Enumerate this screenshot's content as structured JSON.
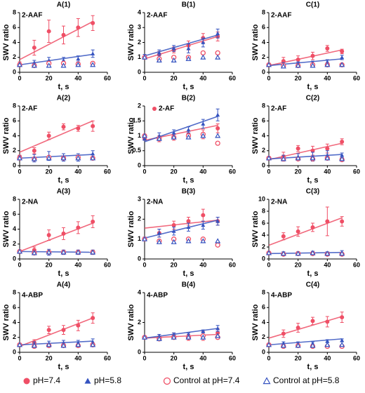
{
  "legend": [
    {
      "name": "pH=7.4",
      "color": "#ef4f66",
      "marker": "circle"
    },
    {
      "name": "pH=5.8",
      "color": "#3553c0",
      "marker": "triangle"
    },
    {
      "name": "Control at pH=7.4",
      "color": "#ef4f66",
      "marker": "open-circle"
    },
    {
      "name": "Control at pH=5.8",
      "color": "#3553c0",
      "marker": "open-triangle"
    }
  ],
  "chart_data": [
    {
      "type": "scatter",
      "title": "A(1)",
      "label": "2-AAF",
      "y_label": "SWV ratio",
      "x_label": "t, s",
      "x": [
        0,
        10,
        20,
        30,
        40,
        50
      ],
      "xlim": [
        0,
        60
      ],
      "xticks": [
        0,
        20,
        40,
        60
      ],
      "ylim": [
        0,
        8
      ],
      "yticks": [
        0,
        2,
        4,
        6,
        8
      ],
      "fit_x": [
        0,
        50
      ],
      "series": [
        {
          "values": [
            1.1,
            3.3,
            5.5,
            5.0,
            6.0,
            6.6
          ],
          "errors": [
            0.3,
            1.0,
            1.5,
            1.2,
            1.2,
            1.0
          ],
          "fit": [
            1.7,
            6.8
          ]
        },
        {
          "values": [
            1.0,
            1.3,
            1.6,
            1.6,
            1.8,
            2.5
          ],
          "errors": [
            0.2,
            0.3,
            0.4,
            0.4,
            0.4,
            0.5
          ],
          "fit": [
            1.0,
            2.4
          ]
        },
        {
          "values": [
            1.0,
            0.9,
            1.2,
            1.2,
            1.1,
            1.2
          ]
        },
        {
          "values": [
            1.0,
            0.9,
            0.9,
            0.9,
            1.0,
            1.0
          ]
        }
      ]
    },
    {
      "type": "scatter",
      "title": "B(1)",
      "label": "2-AAF",
      "y_label": "SWV ratio",
      "x_label": "t, s",
      "x": [
        0,
        10,
        20,
        30,
        40,
        50
      ],
      "xlim": [
        0,
        60
      ],
      "xticks": [
        0,
        20,
        40,
        60
      ],
      "ylim": [
        0,
        4
      ],
      "yticks": [
        0,
        1,
        2,
        3,
        4
      ],
      "fit_x": [
        0,
        50
      ],
      "series": [
        {
          "values": [
            1.0,
            1.2,
            1.5,
            1.8,
            2.3,
            2.4
          ],
          "errors": [
            0.1,
            0.2,
            0.2,
            0.3,
            0.3,
            0.3
          ],
          "fit": [
            0.9,
            2.4
          ]
        },
        {
          "values": [
            1.1,
            1.3,
            1.6,
            1.6,
            2.0,
            2.6
          ],
          "errors": [
            0.1,
            0.2,
            0.2,
            0.3,
            0.3,
            0.3
          ],
          "fit": [
            1.1,
            2.5
          ]
        },
        {
          "values": [
            1.0,
            0.9,
            1.0,
            1.0,
            1.3,
            1.3
          ]
        },
        {
          "values": [
            1.0,
            0.8,
            0.8,
            0.9,
            1.0,
            1.0
          ]
        }
      ]
    },
    {
      "type": "scatter",
      "title": "C(1)",
      "label": "2-AAF",
      "y_label": "SWV ratio",
      "x_label": "t, s",
      "x": [
        0,
        10,
        20,
        30,
        40,
        50
      ],
      "xlim": [
        0,
        60
      ],
      "xticks": [
        0,
        20,
        40,
        60
      ],
      "ylim": [
        0,
        8
      ],
      "yticks": [
        0,
        2,
        4,
        6,
        8
      ],
      "fit_x": [
        0,
        50
      ],
      "series": [
        {
          "values": [
            1.0,
            1.5,
            1.7,
            2.2,
            3.2,
            2.8
          ],
          "errors": [
            0.2,
            0.5,
            0.5,
            0.5,
            0.4,
            0.3
          ],
          "fit": [
            0.9,
            3.0
          ]
        },
        {
          "values": [
            1.0,
            1.1,
            1.2,
            1.3,
            1.4,
            2.0
          ],
          "errors": [
            0.1,
            0.2,
            0.2,
            0.2,
            0.3,
            0.3
          ],
          "fit": [
            0.9,
            1.8
          ]
        },
        {
          "values": [
            1.0,
            0.9,
            0.9,
            1.0,
            1.0,
            1.0
          ]
        },
        {
          "values": [
            1.0,
            0.8,
            0.9,
            0.9,
            1.0,
            1.0
          ]
        }
      ]
    },
    {
      "type": "scatter",
      "title": "A(2)",
      "label": "2-AF",
      "y_label": "SWV ratio",
      "x_label": "t, s",
      "x": [
        0,
        10,
        20,
        30,
        40,
        50
      ],
      "xlim": [
        0,
        60
      ],
      "xticks": [
        0,
        20,
        40,
        60
      ],
      "ylim": [
        0,
        8
      ],
      "yticks": [
        0,
        2,
        4,
        6,
        8
      ],
      "fit_x": [
        0,
        50
      ],
      "series": [
        {
          "values": [
            1.2,
            2.0,
            4.0,
            5.2,
            5.0,
            5.3
          ],
          "errors": [
            0.2,
            0.4,
            0.5,
            0.4,
            0.4,
            0.7
          ],
          "fit": [
            1.8,
            6.0
          ]
        },
        {
          "values": [
            1.1,
            1.0,
            1.3,
            1.1,
            1.1,
            1.6
          ],
          "errors": [
            0.2,
            0.5,
            0.6,
            0.5,
            0.5,
            0.4
          ],
          "fit": [
            1.0,
            1.5
          ]
        },
        {
          "values": [
            1.0,
            0.9,
            1.1,
            1.0,
            1.1,
            1.0
          ]
        },
        {
          "values": [
            1.0,
            0.9,
            1.0,
            1.0,
            1.0,
            1.0
          ]
        }
      ]
    },
    {
      "type": "scatter",
      "title": "B(2)",
      "label": "2-AF",
      "label_marker": "circle",
      "y_label": "SWV ratio",
      "x_label": "t, s",
      "x": [
        0,
        10,
        20,
        30,
        40,
        50
      ],
      "xlim": [
        0,
        60
      ],
      "xticks": [
        0,
        20,
        40,
        60
      ],
      "ylim": [
        0,
        2
      ],
      "yticks": [
        0,
        0.5,
        1,
        1.5,
        2
      ],
      "fit_x": [
        0,
        50
      ],
      "series": [
        {
          "values": [
            0.9,
            0.9,
            0.95,
            1.05,
            1.05,
            1.25
          ],
          "errors": [
            0.05,
            0.1,
            0.1,
            0.1,
            0.15,
            0.15
          ],
          "fit": [
            0.85,
            1.35
          ]
        },
        {
          "values": [
            0.9,
            1.0,
            1.1,
            1.2,
            1.4,
            1.7
          ],
          "errors": [
            0.05,
            0.1,
            0.1,
            0.1,
            0.15,
            0.2
          ],
          "fit": [
            0.8,
            1.65
          ]
        },
        {
          "values": [
            1.0,
            0.9,
            0.95,
            1.0,
            1.05,
            0.75
          ]
        },
        {
          "values": [
            1.0,
            0.9,
            0.95,
            0.95,
            1.0,
            1.0
          ]
        }
      ]
    },
    {
      "type": "scatter",
      "title": "C(2)",
      "label": "2-AF",
      "y_label": "SWV ratio",
      "x_label": "t, s",
      "x": [
        0,
        10,
        20,
        30,
        40,
        50
      ],
      "xlim": [
        0,
        60
      ],
      "xticks": [
        0,
        20,
        40,
        60
      ],
      "ylim": [
        0,
        8
      ],
      "yticks": [
        0,
        2,
        4,
        6,
        8
      ],
      "fit_x": [
        0,
        50
      ],
      "series": [
        {
          "values": [
            1.0,
            1.2,
            2.3,
            2.0,
            2.3,
            3.2
          ],
          "errors": [
            0.2,
            0.6,
            0.4,
            0.6,
            0.6,
            0.4
          ],
          "fit": [
            0.8,
            3.0
          ]
        },
        {
          "values": [
            1.0,
            1.1,
            1.2,
            1.2,
            1.4,
            1.4
          ],
          "errors": [
            0.1,
            0.3,
            0.4,
            0.6,
            0.6,
            0.3
          ],
          "fit": [
            0.9,
            1.5
          ]
        },
        {
          "values": [
            1.0,
            0.9,
            0.9,
            0.9,
            1.0,
            0.8
          ]
        },
        {
          "values": [
            1.0,
            0.9,
            1.0,
            1.0,
            1.0,
            0.9
          ]
        }
      ]
    },
    {
      "type": "scatter",
      "title": "A(3)",
      "label": "2-NA",
      "y_label": "SWV ratio",
      "x_label": "t, s",
      "x": [
        0,
        10,
        20,
        30,
        40,
        50
      ],
      "xlim": [
        0,
        60
      ],
      "xticks": [
        0,
        20,
        40,
        60
      ],
      "ylim": [
        0,
        8
      ],
      "yticks": [
        0,
        2,
        4,
        6,
        8
      ],
      "fit_x": [
        0,
        50
      ],
      "series": [
        {
          "values": [
            1.0,
            1.2,
            3.2,
            3.4,
            4.2,
            5.0
          ],
          "errors": [
            0.2,
            0.4,
            0.7,
            0.8,
            0.8,
            0.8
          ],
          "fit": [
            1.0,
            4.8
          ]
        },
        {
          "values": [
            1.0,
            0.9,
            0.9,
            0.9,
            0.9,
            0.9
          ],
          "errors": [
            0.1,
            0.2,
            0.4,
            0.3,
            0.3,
            0.3
          ],
          "fit": [
            1.0,
            0.9
          ]
        },
        {
          "values": [
            1.0,
            0.8,
            0.9,
            0.9,
            0.9,
            0.9
          ]
        },
        {
          "values": [
            1.0,
            0.8,
            0.9,
            0.9,
            0.9,
            0.9
          ]
        }
      ]
    },
    {
      "type": "scatter",
      "title": "B(3)",
      "label": "2-NA",
      "y_label": "SWV ratio",
      "x_label": "t, s",
      "x": [
        0,
        10,
        20,
        30,
        40,
        50
      ],
      "xlim": [
        0,
        60
      ],
      "xticks": [
        0,
        20,
        40,
        60
      ],
      "ylim": [
        0,
        3
      ],
      "yticks": [
        0,
        1,
        2,
        3
      ],
      "fit_x": [
        0,
        50
      ],
      "series": [
        {
          "values": [
            1.0,
            1.3,
            1.7,
            1.9,
            2.2,
            1.9
          ],
          "errors": [
            0.1,
            0.2,
            0.2,
            0.2,
            0.3,
            0.2
          ],
          "fit": [
            1.55,
            1.95
          ]
        },
        {
          "values": [
            1.0,
            1.3,
            1.4,
            1.6,
            1.7,
            1.9
          ],
          "errors": [
            0.1,
            0.2,
            0.2,
            0.2,
            0.2,
            0.2
          ],
          "fit": [
            1.05,
            1.95
          ]
        },
        {
          "values": [
            1.0,
            0.9,
            1.0,
            1.0,
            1.0,
            0.7
          ]
        },
        {
          "values": [
            1.0,
            0.85,
            0.85,
            0.9,
            0.9,
            0.9
          ]
        }
      ]
    },
    {
      "type": "scatter",
      "title": "C(3)",
      "label": "2-NA",
      "y_label": "SWV ratio",
      "x_label": "t, s",
      "x": [
        0,
        10,
        20,
        30,
        40,
        50
      ],
      "xlim": [
        0,
        60
      ],
      "xticks": [
        0,
        20,
        40,
        60
      ],
      "ylim": [
        0,
        10
      ],
      "yticks": [
        0,
        2,
        4,
        6,
        8,
        10
      ],
      "fit_x": [
        0,
        50
      ],
      "series": [
        {
          "values": [
            1.0,
            3.8,
            4.6,
            5.3,
            6.3,
            6.3
          ],
          "errors": [
            0.2,
            0.6,
            0.8,
            0.7,
            2.4,
            0.8
          ],
          "fit": [
            2.3,
            6.9
          ]
        },
        {
          "values": [
            1.0,
            1.0,
            1.0,
            1.1,
            1.0,
            1.1
          ],
          "errors": [
            0.1,
            0.2,
            0.2,
            0.2,
            0.2,
            0.3
          ],
          "fit": [
            0.9,
            1.1
          ]
        },
        {
          "values": [
            1.0,
            0.8,
            0.9,
            0.9,
            0.8,
            0.8
          ]
        },
        {
          "values": [
            1.0,
            0.9,
            0.9,
            1.0,
            0.9,
            0.9
          ]
        }
      ]
    },
    {
      "type": "scatter",
      "title": "A(4)",
      "label": "4-ABP",
      "y_label": "SWV ratio",
      "x_label": "t, s",
      "x": [
        0,
        10,
        20,
        30,
        40,
        50
      ],
      "xlim": [
        0,
        60
      ],
      "xticks": [
        0,
        20,
        40,
        60
      ],
      "ylim": [
        0,
        8
      ],
      "yticks": [
        0,
        2,
        4,
        6,
        8
      ],
      "fit_x": [
        0,
        50
      ],
      "series": [
        {
          "values": [
            1.0,
            1.3,
            3.0,
            3.0,
            3.6,
            4.6
          ],
          "errors": [
            0.2,
            0.4,
            0.5,
            0.6,
            0.7,
            0.7
          ],
          "fit": [
            0.8,
            4.6
          ]
        },
        {
          "values": [
            1.0,
            1.1,
            1.2,
            1.3,
            1.3,
            1.4
          ],
          "errors": [
            0.1,
            0.3,
            0.3,
            0.3,
            0.3,
            0.4
          ],
          "fit": [
            1.0,
            1.5
          ]
        },
        {
          "values": [
            1.0,
            0.8,
            0.9,
            0.9,
            0.9,
            1.0
          ]
        },
        {
          "values": [
            1.0,
            0.9,
            1.0,
            0.9,
            1.0,
            1.0
          ]
        }
      ]
    },
    {
      "type": "scatter",
      "title": "B(4)",
      "label": "4-ABP",
      "y_label": "SWV ratio",
      "x_label": "t, s",
      "x": [
        0,
        10,
        20,
        30,
        40,
        50
      ],
      "xlim": [
        0,
        60
      ],
      "xticks": [
        0,
        20,
        40,
        60
      ],
      "ylim": [
        0,
        4
      ],
      "yticks": [
        0,
        2,
        4
      ],
      "fit_x": [
        0,
        50
      ],
      "series": [
        {
          "values": [
            1.0,
            1.0,
            1.1,
            1.0,
            1.1,
            1.3
          ],
          "errors": [
            0.1,
            0.2,
            0.2,
            0.2,
            0.3,
            0.3
          ],
          "fit": [
            0.95,
            1.2
          ]
        },
        {
          "values": [
            1.0,
            1.1,
            1.2,
            1.2,
            1.4,
            1.6
          ],
          "errors": [
            0.1,
            0.1,
            0.1,
            0.1,
            0.1,
            0.2
          ],
          "fit": [
            0.95,
            1.6
          ]
        },
        {
          "values": [
            1.0,
            0.9,
            1.0,
            1.0,
            1.1,
            1.0
          ]
        },
        {
          "values": [
            1.0,
            0.9,
            1.0,
            1.0,
            1.0,
            1.1
          ]
        }
      ]
    },
    {
      "type": "scatter",
      "title": "C(4)",
      "label": "4-ABP",
      "y_label": "SWV ratio",
      "x_label": "t, s",
      "x": [
        0,
        10,
        20,
        30,
        40,
        50
      ],
      "xlim": [
        0,
        60
      ],
      "xticks": [
        0,
        20,
        40,
        60
      ],
      "ylim": [
        0,
        8
      ],
      "yticks": [
        0,
        2,
        4,
        6,
        8
      ],
      "fit_x": [
        0,
        50
      ],
      "series": [
        {
          "values": [
            1.0,
            2.5,
            3.3,
            4.2,
            4.1,
            4.7
          ],
          "errors": [
            0.2,
            0.5,
            0.6,
            0.5,
            0.7,
            0.7
          ],
          "fit": [
            1.9,
            4.8
          ]
        },
        {
          "values": [
            1.0,
            1.2,
            1.2,
            1.2,
            1.5,
            1.6
          ],
          "errors": [
            0.1,
            0.2,
            0.2,
            0.2,
            0.2,
            0.2
          ],
          "fit": [
            1.0,
            1.8
          ]
        },
        {
          "values": [
            1.0,
            0.8,
            0.9,
            0.8,
            0.8,
            0.8
          ]
        },
        {
          "values": [
            1.0,
            0.9,
            0.9,
            0.9,
            1.0,
            1.0
          ]
        }
      ]
    }
  ]
}
